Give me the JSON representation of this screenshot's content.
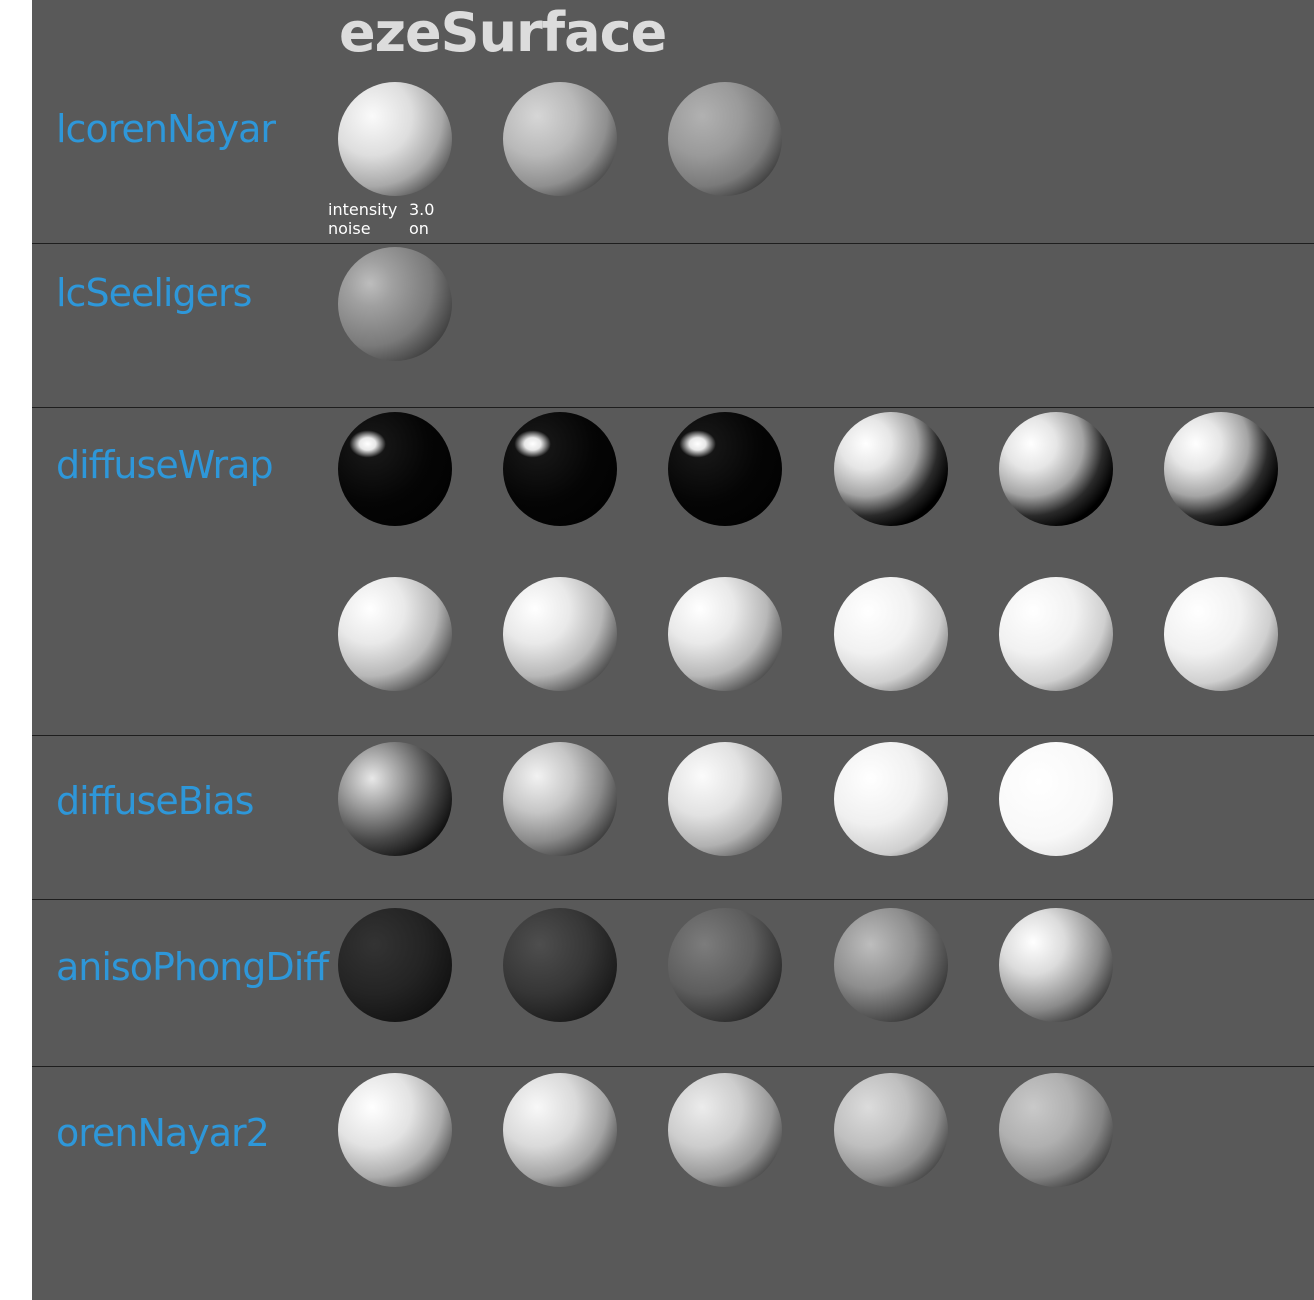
{
  "title": "ezeSurface",
  "param_note": {
    "intensity_label": "intensity",
    "intensity_value": "3.0",
    "noise_label": "noise",
    "noise_value": "on"
  },
  "rows": [
    {
      "label": "lcorenNayar",
      "spheres": [
        "soft-light",
        "soft-mid",
        "soft-dark"
      ]
    },
    {
      "label": "lcSeeligers",
      "spheres": [
        "rim"
      ]
    },
    {
      "label": "diffuseWrap",
      "spheres": [
        "spec-dark",
        "spec-dark",
        "spec-dark",
        "wrap-dark",
        "wrap-dark",
        "wrap-dark",
        "wrap-light",
        "wrap-light",
        "wrap-light",
        "wrap-bright",
        "wrap-bright",
        "wrap-bright"
      ]
    },
    {
      "label": "diffuseBias",
      "spheres": [
        "bias-1",
        "bias-2",
        "bias-3",
        "bias-4",
        "bias-5"
      ]
    },
    {
      "label": "anisoPhongDiff",
      "spheres": [
        "aniso-1",
        "aniso-2",
        "aniso-3",
        "aniso-4",
        "aniso-5"
      ]
    },
    {
      "label": "orenNayar2",
      "spheres": [
        "oren-1",
        "oren-2",
        "oren-3",
        "oren-4",
        "oren-5"
      ]
    }
  ]
}
